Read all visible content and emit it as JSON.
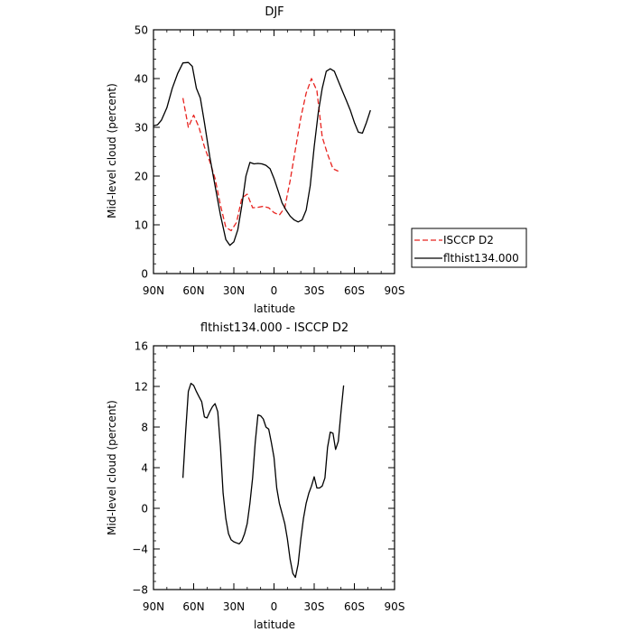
{
  "chart_data": [
    {
      "type": "line",
      "title": "DJF",
      "xlabel": "latitude",
      "ylabel": "Mid-level cloud (percent)",
      "xlim": [
        -90,
        90
      ],
      "ylim": [
        0,
        50
      ],
      "x_ticks": [
        -90,
        -60,
        -30,
        0,
        30,
        60,
        90
      ],
      "x_tick_labels": [
        "90N",
        "60N",
        "30N",
        "0",
        "30S",
        "60S",
        "90S"
      ],
      "y_ticks": [
        0,
        10,
        20,
        30,
        40,
        50
      ],
      "y_tick_labels": [
        "0",
        "10",
        "20",
        "30",
        "40",
        "50"
      ],
      "legend_position": "outside-right",
      "series": [
        {
          "name": "ISCCP D2",
          "color": "#e8231f",
          "dash": "dashed",
          "x": [
            -88,
            -84,
            -80,
            -76,
            -72,
            -68,
            -64,
            -60,
            -56,
            -52,
            -48,
            -44,
            -40,
            -36,
            -32,
            -28,
            -24,
            -20,
            -16,
            -12,
            -8,
            -4,
            0,
            4,
            8,
            12,
            16,
            20,
            24,
            28,
            32,
            36,
            40,
            44,
            48,
            52,
            56,
            60,
            64,
            68,
            72,
            76,
            80,
            84,
            88
          ],
          "y": [
            null,
            null,
            null,
            null,
            null,
            36,
            30,
            32.5,
            30,
            26,
            23,
            19.5,
            14,
            9.5,
            8.8,
            10.5,
            15.5,
            16.3,
            13.5,
            13.6,
            13.8,
            13.5,
            12.5,
            12,
            13.5,
            19,
            25.5,
            32,
            37,
            40,
            37.5,
            28,
            24.5,
            21.5,
            21,
            null,
            null,
            null,
            null,
            null,
            null,
            null,
            null,
            null,
            null
          ]
        },
        {
          "name": "flthist134.000",
          "color": "#000000",
          "dash": "solid",
          "x": [
            -90,
            -87,
            -84,
            -80,
            -76,
            -72,
            -68,
            -64,
            -61,
            -58,
            -55,
            -52,
            -48,
            -44,
            -40,
            -36,
            -33,
            -30,
            -27,
            -24,
            -21,
            -18,
            -15,
            -12,
            -9,
            -6,
            -3,
            0,
            3,
            6,
            9,
            12,
            15,
            18,
            21,
            24,
            27,
            30,
            33,
            36,
            39,
            42,
            45,
            48,
            51,
            54,
            57,
            60,
            63,
            66,
            69,
            72,
            75,
            78,
            81,
            84,
            87,
            90
          ],
          "y": [
            30.3,
            30.5,
            31.5,
            34,
            38,
            41,
            43.2,
            43.3,
            42.5,
            38,
            36,
            31,
            24,
            18,
            12,
            7,
            5.8,
            6.5,
            9,
            14,
            20,
            22.8,
            22.5,
            22.6,
            22.5,
            22.2,
            21.5,
            19.5,
            17,
            14.5,
            13,
            11.8,
            11,
            10.6,
            11,
            13,
            18,
            26,
            33,
            38,
            41.5,
            42,
            41.5,
            39.5,
            37.5,
            35.5,
            33.5,
            31,
            29,
            28.8,
            31,
            33.5,
            null,
            null,
            null,
            null,
            null,
            null
          ]
        }
      ]
    },
    {
      "type": "line",
      "title": "flthist134.000 - ISCCP D2",
      "xlabel": "latitude",
      "ylabel": "Mid-level cloud (percent)",
      "xlim": [
        -90,
        90
      ],
      "ylim": [
        -8,
        16
      ],
      "x_ticks": [
        -90,
        -60,
        -30,
        0,
        30,
        60,
        90
      ],
      "x_tick_labels": [
        "90N",
        "60N",
        "30N",
        "0",
        "30S",
        "60S",
        "90S"
      ],
      "y_ticks": [
        -8,
        -4,
        0,
        4,
        8,
        12,
        16
      ],
      "y_tick_labels": [
        "−8",
        "−4",
        "0",
        "4",
        "8",
        "12",
        "16"
      ],
      "series": [
        {
          "color": "#000000",
          "dash": "solid",
          "x": [
            -68,
            -66,
            -64,
            -62,
            -60,
            -58,
            -56,
            -54,
            -52,
            -50,
            -48,
            -46,
            -44,
            -42,
            -40,
            -38,
            -36,
            -34,
            -32,
            -30,
            -28,
            -26,
            -24,
            -22,
            -20,
            -18,
            -16,
            -14,
            -12,
            -10,
            -8,
            -6,
            -4,
            -2,
            0,
            2,
            4,
            6,
            8,
            10,
            12,
            14,
            16,
            18,
            20,
            22,
            24,
            26,
            28,
            30,
            32,
            34,
            36,
            38,
            40,
            42,
            44,
            46,
            48,
            50,
            52,
            54,
            56,
            58,
            60,
            62,
            64,
            66,
            68,
            70,
            72,
            74,
            76,
            78,
            80,
            82,
            84,
            86,
            88
          ],
          "y": [
            3,
            7.5,
            11.5,
            12.3,
            12.1,
            11.5,
            11,
            10.5,
            9,
            8.9,
            9.5,
            10,
            10.3,
            9.5,
            6,
            1.5,
            -1,
            -2.5,
            -3.1,
            -3.3,
            -3.4,
            -3.5,
            -3.2,
            -2.5,
            -1.5,
            0.5,
            3,
            6.5,
            9.2,
            9.1,
            8.8,
            8,
            7.8,
            6.5,
            5,
            2,
            0.5,
            -0.5,
            -1.5,
            -3,
            -5,
            -6.4,
            -6.8,
            -5.5,
            -3,
            -1,
            0.5,
            1.5,
            2.2,
            3.1,
            2,
            2,
            2.2,
            3,
            6,
            7.5,
            7.4,
            5.8,
            6.6,
            9.5,
            12.1,
            null,
            null,
            null,
            null,
            null,
            null,
            null,
            null,
            null,
            null,
            null,
            null,
            null,
            null,
            null,
            null,
            null,
            null
          ]
        }
      ]
    }
  ]
}
